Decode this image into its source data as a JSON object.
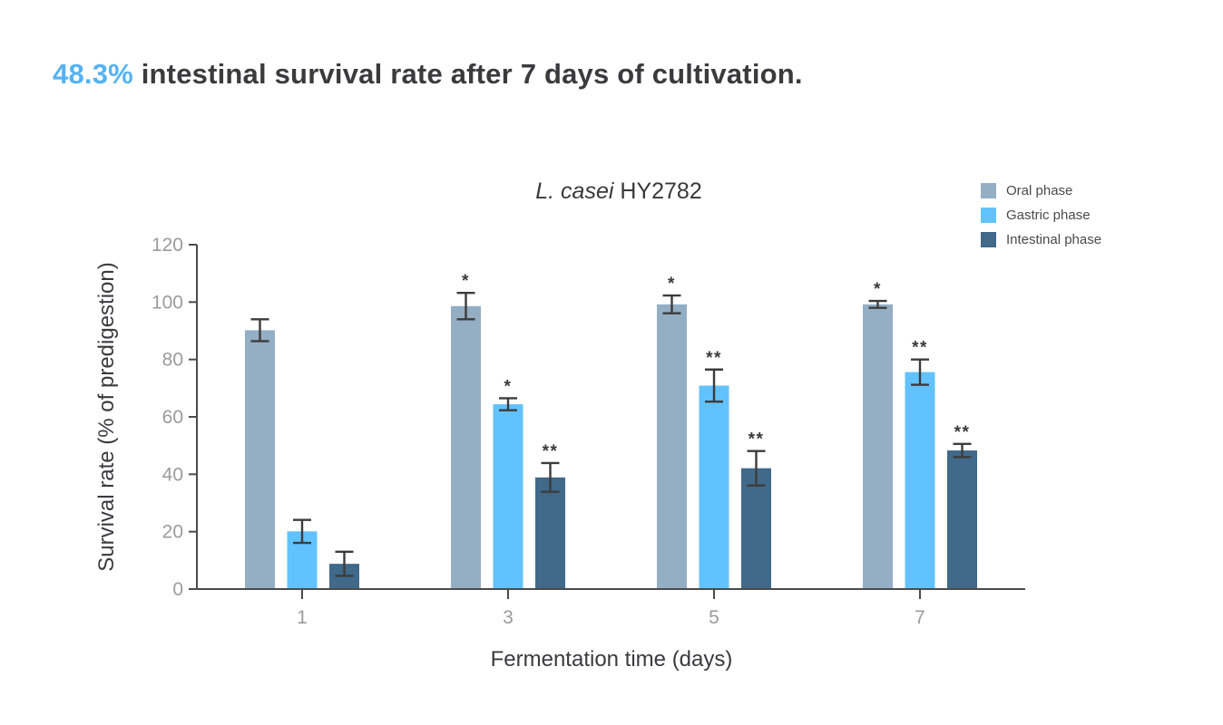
{
  "page": {
    "headline": {
      "accent": "48.3%",
      "accent_color": "#55B2F4",
      "rest": " intestinal survival rate after 7 days of cultivation."
    }
  },
  "chart_data": {
    "type": "bar",
    "title": {
      "italic": "L. casei",
      "rest": " HY2782"
    },
    "xlabel": "Fermentation time (days)",
    "ylabel": "Survival rate (% of predigestion)",
    "categories": [
      "1",
      "3",
      "5",
      "7"
    ],
    "yticks": [
      0,
      20,
      40,
      60,
      80,
      100,
      120
    ],
    "ylim": [
      0,
      120
    ],
    "grid": false,
    "legend_position": "top-right",
    "axis_color": "#4B4B4B",
    "tick_label_color": "#9B9B9D",
    "error_bar_color": "#3C3C3C",
    "significance_color": "#3A3A3A",
    "series": [
      {
        "name": "Oral phase",
        "color": "#94AEC4",
        "values": [
          90.2,
          98.6,
          99.2,
          99.2
        ],
        "errors": [
          3.8,
          4.6,
          3.1,
          1.2
        ],
        "significance": [
          "",
          "*",
          "*",
          "*"
        ]
      },
      {
        "name": "Gastric phase",
        "color": "#62C2FE",
        "values": [
          20.1,
          64.4,
          70.9,
          75.6
        ],
        "errors": [
          4.0,
          2.1,
          5.6,
          4.4
        ],
        "significance": [
          "",
          "*",
          "**",
          "**"
        ]
      },
      {
        "name": "Intestinal phase",
        "color": "#40698A",
        "values": [
          8.8,
          38.9,
          42.1,
          48.3
        ],
        "errors": [
          4.2,
          5.0,
          6.0,
          2.3
        ],
        "significance": [
          "",
          "**",
          "**",
          "**"
        ]
      }
    ]
  }
}
